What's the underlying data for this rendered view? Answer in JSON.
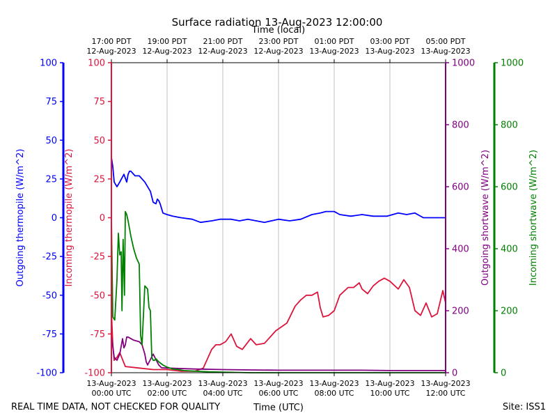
{
  "chart_data": {
    "type": "line",
    "title": "Surface radiation 13-Aug-2023 12:00:00",
    "top_axis_label": "Time (local)",
    "xlabel": "Time (UTC)",
    "x_range_hours_utc": [
      0,
      12
    ],
    "bottom_ticks": [
      {
        "h": 0,
        "line1": "13-Aug-2023",
        "line2": "00:00 UTC"
      },
      {
        "h": 2,
        "line1": "13-Aug-2023",
        "line2": "02:00 UTC"
      },
      {
        "h": 4,
        "line1": "13-Aug-2023",
        "line2": "04:00 UTC"
      },
      {
        "h": 6,
        "line1": "13-Aug-2023",
        "line2": "06:00 UTC"
      },
      {
        "h": 8,
        "line1": "13-Aug-2023",
        "line2": "08:00 UTC"
      },
      {
        "h": 10,
        "line1": "13-Aug-2023",
        "line2": "10:00 UTC"
      },
      {
        "h": 12,
        "line1": "13-Aug-2023",
        "line2": "12:00 UTC"
      }
    ],
    "top_ticks": [
      {
        "h": 0,
        "line1": "17:00 PDT",
        "line2": "12-Aug-2023"
      },
      {
        "h": 2,
        "line1": "19:00 PDT",
        "line2": "12-Aug-2023"
      },
      {
        "h": 4,
        "line1": "21:00 PDT",
        "line2": "12-Aug-2023"
      },
      {
        "h": 6,
        "line1": "23:00 PDT",
        "line2": "12-Aug-2023"
      },
      {
        "h": 8,
        "line1": "01:00 PDT",
        "line2": "13-Aug-2023"
      },
      {
        "h": 10,
        "line1": "03:00 PDT",
        "line2": "13-Aug-2023"
      },
      {
        "h": 12,
        "line1": "05:00 PDT",
        "line2": "13-Aug-2023"
      }
    ],
    "grid": "vertical",
    "axes": {
      "outgoing_thermopile": {
        "label": "Outgoing thermopile (W/m^2)",
        "color": "#0000ff",
        "ylim": [
          -100,
          100
        ],
        "ticks": [
          -100,
          -75,
          -50,
          -25,
          0,
          25,
          50,
          75,
          100
        ]
      },
      "incoming_thermopile": {
        "label": "Incoming thermopile (W/m^2)",
        "color": "#dc143c",
        "ylim": [
          -100,
          100
        ],
        "ticks": [
          -100,
          -75,
          -50,
          -25,
          0,
          25,
          50,
          75,
          100
        ]
      },
      "outgoing_shortwave": {
        "label": "Outgoing shortwave (W/m^2)",
        "color": "#800080",
        "ylim": [
          0,
          1000
        ],
        "ticks": [
          0,
          200,
          400,
          600,
          800,
          1000
        ]
      },
      "incoming_shortwave": {
        "label": "Incoming shortwave (W/m^2)",
        "color": "#008000",
        "ylim": [
          0,
          1000
        ],
        "ticks": [
          0,
          200,
          400,
          600,
          800,
          1000
        ]
      }
    },
    "series": [
      {
        "key": "outgoing_thermopile",
        "color": "#0000ff",
        "x": [
          0,
          0.05,
          0.1,
          0.2,
          0.3,
          0.45,
          0.55,
          0.6,
          0.65,
          0.7,
          0.85,
          1.0,
          1.2,
          1.4,
          1.5,
          1.6,
          1.65,
          1.7,
          1.75,
          1.85,
          2.0,
          2.2,
          2.5,
          2.9,
          3.2,
          3.6,
          3.9,
          4.3,
          4.6,
          4.9,
          5.2,
          5.5,
          6.0,
          6.4,
          6.8,
          7.2,
          7.5,
          7.7,
          8.0,
          8.2,
          8.6,
          9.0,
          9.4,
          9.6,
          9.9,
          10.3,
          10.6,
          10.9,
          11.2,
          11.5,
          11.8,
          12.0
        ],
        "y": [
          39,
          33,
          23,
          20,
          23,
          28,
          23,
          28,
          30,
          30,
          27,
          27,
          23,
          17,
          10,
          9,
          12,
          11,
          9,
          3,
          2,
          1,
          0,
          -1,
          -3,
          -2,
          -1,
          -1,
          -2,
          -1,
          -2,
          -3,
          -1,
          -2,
          -1,
          2,
          3,
          4,
          4,
          2,
          1,
          2,
          1,
          1,
          1,
          3,
          2,
          3,
          0,
          0,
          0,
          0
        ]
      },
      {
        "key": "incoming_thermopile",
        "color": "#dc143c",
        "x": [
          0,
          0.05,
          0.1,
          0.2,
          0.3,
          0.5,
          1.0,
          1.5,
          2.0,
          2.5,
          3.0,
          3.3,
          3.6,
          3.75,
          3.9,
          4.1,
          4.3,
          4.5,
          4.7,
          5.0,
          5.2,
          5.5,
          5.9,
          6.3,
          6.6,
          6.8,
          7.0,
          7.2,
          7.4,
          7.5,
          7.6,
          7.8,
          8.0,
          8.2,
          8.5,
          8.7,
          8.9,
          9.0,
          9.2,
          9.4,
          9.6,
          9.8,
          10.0,
          10.3,
          10.5,
          10.7,
          10.9,
          11.1,
          11.3,
          11.5,
          11.7,
          11.9,
          12.0
        ],
        "y": [
          -60,
          -82,
          -92,
          -90,
          -87,
          -96,
          -97,
          -98,
          -98,
          -99,
          -99,
          -97,
          -85,
          -82,
          -82,
          -80,
          -75,
          -83,
          -85,
          -78,
          -82,
          -81,
          -73,
          -68,
          -57,
          -53,
          -50,
          -50,
          -48,
          -58,
          -64,
          -63,
          -60,
          -50,
          -45,
          -45,
          -42,
          -46,
          -49,
          -44,
          -41,
          -39,
          -41,
          -46,
          -40,
          -45,
          -60,
          -63,
          -55,
          -64,
          -62,
          -47,
          -55
        ]
      },
      {
        "key": "outgoing_shortwave",
        "color": "#800080",
        "x": [
          0,
          0.1,
          0.2,
          0.3,
          0.4,
          0.45,
          0.5,
          0.55,
          0.6,
          0.8,
          1.0,
          1.1,
          1.2,
          1.25,
          1.3,
          1.5,
          1.7,
          1.8,
          2.0,
          3.0,
          4.0,
          5.0,
          6.0,
          7.0,
          8.0,
          9.0,
          10.0,
          11.0,
          12.0
        ],
        "y": [
          120,
          50,
          40,
          60,
          110,
          80,
          90,
          115,
          115,
          105,
          100,
          90,
          60,
          35,
          25,
          60,
          25,
          16,
          15,
          12,
          10,
          9,
          8,
          8,
          8,
          8,
          7,
          7,
          7
        ]
      },
      {
        "key": "incoming_shortwave",
        "color": "#008000",
        "x": [
          0,
          0.05,
          0.12,
          0.2,
          0.25,
          0.3,
          0.35,
          0.38,
          0.42,
          0.47,
          0.5,
          0.55,
          0.6,
          0.7,
          0.8,
          0.9,
          1.0,
          1.05,
          1.1,
          1.2,
          1.3,
          1.35,
          1.4,
          1.45,
          1.5,
          1.55,
          1.6,
          1.7,
          1.85,
          2.0,
          2.2,
          2.4,
          2.6,
          3.0,
          3.5,
          4.0,
          5.0,
          6.0,
          7.0,
          8.0,
          9.0,
          10.0,
          11.0,
          12.0
        ],
        "y": [
          500,
          180,
          170,
          300,
          450,
          380,
          390,
          200,
          430,
          250,
          520,
          510,
          490,
          440,
          400,
          370,
          350,
          120,
          90,
          280,
          270,
          210,
          200,
          50,
          40,
          40,
          45,
          35,
          25,
          18,
          12,
          10,
          7,
          5,
          3,
          2,
          0,
          0,
          0,
          0,
          0,
          0,
          0,
          0
        ]
      }
    ]
  },
  "footer": {
    "left": "REAL TIME DATA, NOT CHECKED FOR QUALITY",
    "right": "Site: ISS1"
  }
}
